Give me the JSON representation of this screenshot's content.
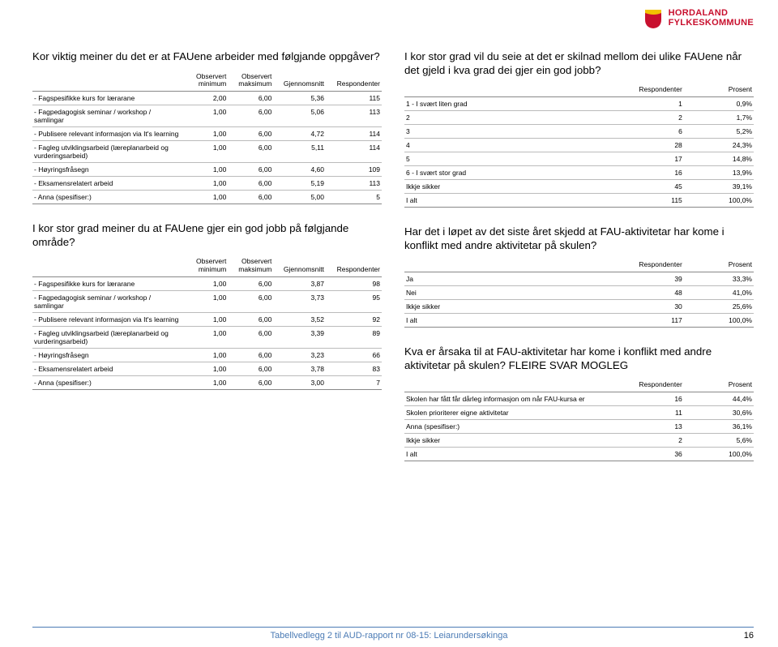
{
  "brand": {
    "line1": "HORDALAND",
    "line2": "FYLKESKOMMUNE",
    "color": "#c8102e"
  },
  "left": {
    "q1": {
      "title": "Kor viktig meiner du det er at FAUene arbeider med følgjande oppgåver?",
      "cols": [
        "",
        "Observert minimum",
        "Observert maksimum",
        "Gjennomsnitt",
        "Respondenter"
      ],
      "rows": [
        [
          "- Fagspesifikke kurs for lærarane",
          "2,00",
          "6,00",
          "5,36",
          "115"
        ],
        [
          "- Fagpedagogisk seminar / workshop / samlingar",
          "1,00",
          "6,00",
          "5,06",
          "113"
        ],
        [
          "- Publisere relevant informasjon via It's learning",
          "1,00",
          "6,00",
          "4,72",
          "114"
        ],
        [
          "- Fagleg utviklingsarbeid (læreplanarbeid og vurderingsarbeid)",
          "1,00",
          "6,00",
          "5,11",
          "114"
        ],
        [
          "- Høyringsfråsegn",
          "1,00",
          "6,00",
          "4,60",
          "109"
        ],
        [
          "- Eksamensrelatert arbeid",
          "1,00",
          "6,00",
          "5,19",
          "113"
        ],
        [
          "- Anna (spesifiser:)",
          "1,00",
          "6,00",
          "5,00",
          "5"
        ]
      ]
    },
    "q2": {
      "title": "I kor stor grad meiner du at FAUene gjer ein god jobb på følgjande område?",
      "cols": [
        "",
        "Observert minimum",
        "Observert maksimum",
        "Gjennomsnitt",
        "Respondenter"
      ],
      "rows": [
        [
          "- Fagspesifikke kurs for lærarane",
          "1,00",
          "6,00",
          "3,87",
          "98"
        ],
        [
          "- Fagpedagogisk seminar / workshop / samlingar",
          "1,00",
          "6,00",
          "3,73",
          "95"
        ],
        [
          "- Publisere relevant informasjon via It's learning",
          "1,00",
          "6,00",
          "3,52",
          "92"
        ],
        [
          "- Fagleg utviklingsarbeid (læreplanarbeid og vurderingsarbeid)",
          "1,00",
          "6,00",
          "3,39",
          "89"
        ],
        [
          "- Høyringsfråsegn",
          "1,00",
          "6,00",
          "3,23",
          "66"
        ],
        [
          "- Eksamensrelatert arbeid",
          "1,00",
          "6,00",
          "3,78",
          "83"
        ],
        [
          "- Anna (spesifiser:)",
          "1,00",
          "6,00",
          "3,00",
          "7"
        ]
      ]
    }
  },
  "right": {
    "q3": {
      "title": "I kor stor grad vil du seie at det er skilnad mellom dei ulike FAUene når det gjeld i kva grad dei gjer ein god jobb?",
      "cols": [
        "",
        "Respondenter",
        "Prosent"
      ],
      "rows": [
        [
          "1 - I svært liten grad",
          "1",
          "0,9%"
        ],
        [
          "2",
          "2",
          "1,7%"
        ],
        [
          "3",
          "6",
          "5,2%"
        ],
        [
          "4",
          "28",
          "24,3%"
        ],
        [
          "5",
          "17",
          "14,8%"
        ],
        [
          "6 - I svært stor grad",
          "16",
          "13,9%"
        ],
        [
          "Ikkje sikker",
          "45",
          "39,1%"
        ],
        [
          "I alt",
          "115",
          "100,0%"
        ]
      ]
    },
    "q4": {
      "title": "Har det i løpet av det siste året skjedd at FAU-aktivitetar har kome i konflikt med andre aktivitetar på skulen?",
      "cols": [
        "",
        "Respondenter",
        "Prosent"
      ],
      "rows": [
        [
          "Ja",
          "39",
          "33,3%"
        ],
        [
          "Nei",
          "48",
          "41,0%"
        ],
        [
          "Ikkje sikker",
          "30",
          "25,6%"
        ],
        [
          "I alt",
          "117",
          "100,0%"
        ]
      ]
    },
    "q5": {
      "title": "Kva er årsaka til at FAU-aktivitetar har kome i konflikt med andre aktivitetar på skulen? FLEIRE SVAR MOGLEG",
      "cols": [
        "",
        "Respondenter",
        "Prosent"
      ],
      "rows": [
        [
          "Skolen har fått får dårleg informasjon om når FAU-kursa er",
          "16",
          "44,4%"
        ],
        [
          "Skolen prioriterer eigne aktivitetar",
          "11",
          "30,6%"
        ],
        [
          "Anna (spesifiser:)",
          "13",
          "36,1%"
        ],
        [
          "Ikkje sikker",
          "2",
          "5,6%"
        ],
        [
          "I alt",
          "36",
          "100,0%"
        ]
      ]
    }
  },
  "footer": {
    "text": "Tabellvedlegg 2 til AUD-rapport nr 08-15: Leiarundersøkinga",
    "page": "16",
    "color": "#4b7bb5"
  }
}
